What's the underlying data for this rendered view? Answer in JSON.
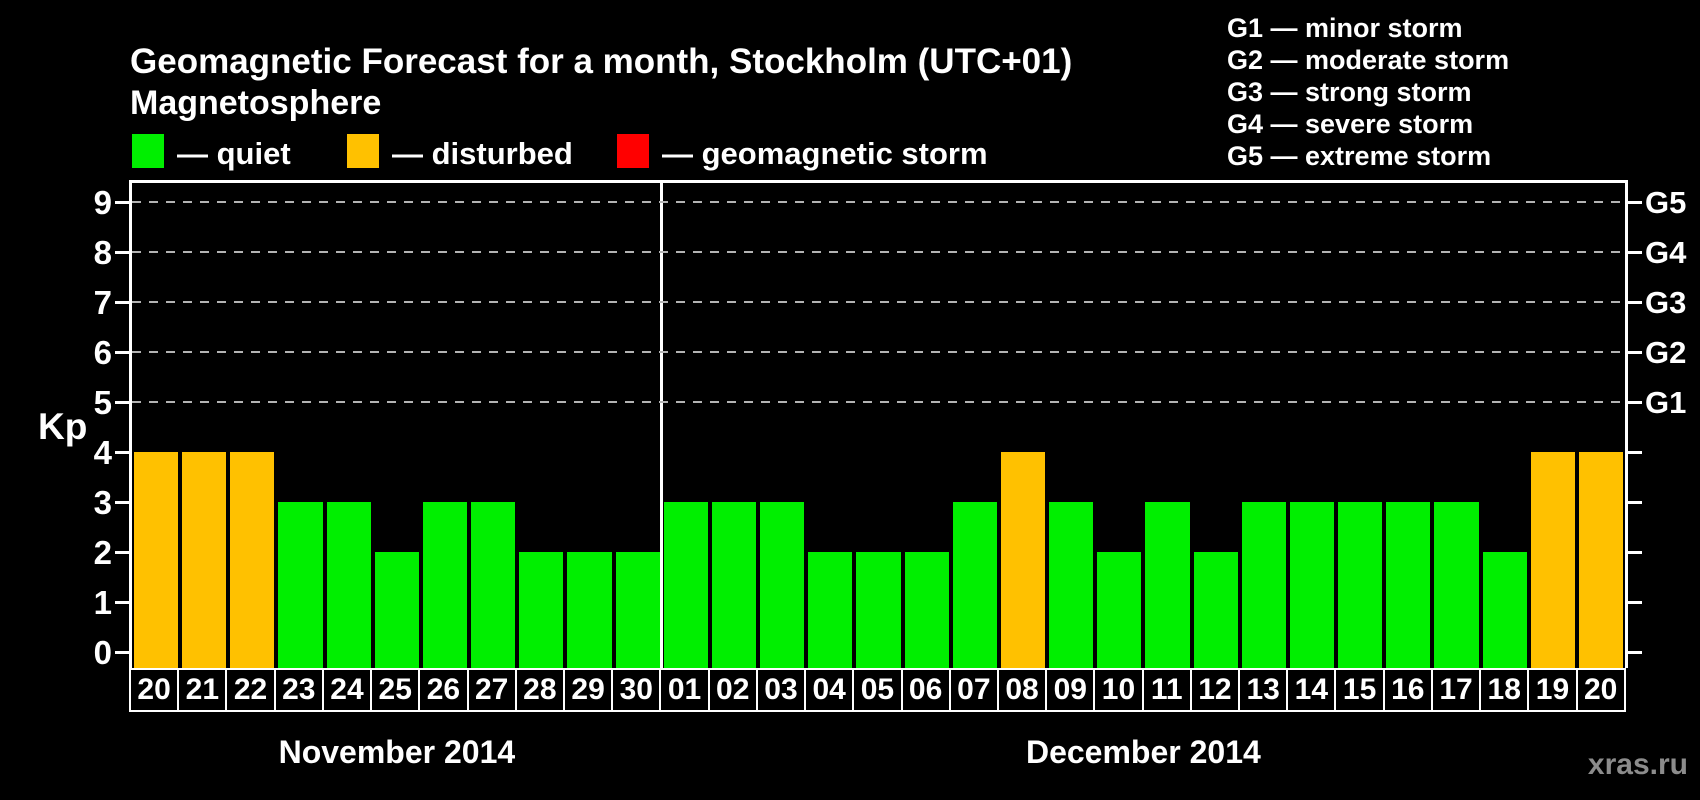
{
  "title": "Geomagnetic Forecast for a month, Stockholm (UTC+01)",
  "legend": {
    "heading": "Magnetosphere",
    "items": [
      {
        "status": "quiet",
        "label": "— quiet",
        "color": "#00EF00"
      },
      {
        "status": "disturbed",
        "label": "— disturbed",
        "color": "#FFC100"
      },
      {
        "status": "storm",
        "label": "— geomagnetic storm",
        "color": "#FF0000"
      }
    ]
  },
  "storm_scale_legend": [
    "G1 — minor storm",
    "G2 — moderate storm",
    "G3 — strong storm",
    "G4 — severe storm",
    "G5 — extreme storm"
  ],
  "y_axis": {
    "title": "Kp",
    "ticks": [
      0,
      1,
      2,
      3,
      4,
      5,
      6,
      7,
      8,
      9
    ],
    "gridline_levels": [
      5,
      6,
      7,
      8,
      9
    ],
    "right_labels": [
      {
        "level": 5,
        "label": "G1"
      },
      {
        "level": 6,
        "label": "G2"
      },
      {
        "level": 7,
        "label": "G3"
      },
      {
        "level": 8,
        "label": "G4"
      },
      {
        "level": 9,
        "label": "G5"
      }
    ]
  },
  "months": [
    {
      "label": "November 2014",
      "day_count": 11
    },
    {
      "label": "December 2014",
      "day_count": 20
    }
  ],
  "watermark": "xras.ru",
  "colors": {
    "background": "#000000",
    "axis": "#FFFFFF",
    "gridline": "#B3B3B3",
    "text": "#FFFFFF",
    "watermark": "#8C8C8C"
  },
  "chart_data": {
    "type": "bar",
    "title": "Geomagnetic Forecast for a month, Stockholm (UTC+01)",
    "xlabel": "",
    "ylabel": "Kp",
    "ylim": [
      0,
      9.4
    ],
    "grid": "dashed horizontal at Kp 5-9 (G1-G5)",
    "legend_position": "top",
    "categories": [
      "Nov 20",
      "Nov 21",
      "Nov 22",
      "Nov 23",
      "Nov 24",
      "Nov 25",
      "Nov 26",
      "Nov 27",
      "Nov 28",
      "Nov 29",
      "Nov 30",
      "Dec 01",
      "Dec 02",
      "Dec 03",
      "Dec 04",
      "Dec 05",
      "Dec 06",
      "Dec 07",
      "Dec 08",
      "Dec 09",
      "Dec 10",
      "Dec 11",
      "Dec 12",
      "Dec 13",
      "Dec 14",
      "Dec 15",
      "Dec 16",
      "Dec 17",
      "Dec 18",
      "Dec 19",
      "Dec 20"
    ],
    "series": [
      {
        "name": "Kp forecast",
        "values": [
          4,
          4,
          4,
          3,
          3,
          2,
          3,
          3,
          2,
          2,
          2,
          3,
          3,
          3,
          2,
          2,
          2,
          3,
          4,
          3,
          2,
          3,
          2,
          3,
          3,
          3,
          3,
          3,
          2,
          4,
          4
        ]
      }
    ],
    "days": [
      {
        "month": "November 2014",
        "label": "20",
        "kp": 4,
        "status": "disturbed"
      },
      {
        "month": "November 2014",
        "label": "21",
        "kp": 4,
        "status": "disturbed"
      },
      {
        "month": "November 2014",
        "label": "22",
        "kp": 4,
        "status": "disturbed"
      },
      {
        "month": "November 2014",
        "label": "23",
        "kp": 3,
        "status": "quiet"
      },
      {
        "month": "November 2014",
        "label": "24",
        "kp": 3,
        "status": "quiet"
      },
      {
        "month": "November 2014",
        "label": "25",
        "kp": 2,
        "status": "quiet"
      },
      {
        "month": "November 2014",
        "label": "26",
        "kp": 3,
        "status": "quiet"
      },
      {
        "month": "November 2014",
        "label": "27",
        "kp": 3,
        "status": "quiet"
      },
      {
        "month": "November 2014",
        "label": "28",
        "kp": 2,
        "status": "quiet"
      },
      {
        "month": "November 2014",
        "label": "29",
        "kp": 2,
        "status": "quiet"
      },
      {
        "month": "November 2014",
        "label": "30",
        "kp": 2,
        "status": "quiet"
      },
      {
        "month": "December 2014",
        "label": "01",
        "kp": 3,
        "status": "quiet"
      },
      {
        "month": "December 2014",
        "label": "02",
        "kp": 3,
        "status": "quiet"
      },
      {
        "month": "December 2014",
        "label": "03",
        "kp": 3,
        "status": "quiet"
      },
      {
        "month": "December 2014",
        "label": "04",
        "kp": 2,
        "status": "quiet"
      },
      {
        "month": "December 2014",
        "label": "05",
        "kp": 2,
        "status": "quiet"
      },
      {
        "month": "December 2014",
        "label": "06",
        "kp": 2,
        "status": "quiet"
      },
      {
        "month": "December 2014",
        "label": "07",
        "kp": 3,
        "status": "quiet"
      },
      {
        "month": "December 2014",
        "label": "08",
        "kp": 4,
        "status": "disturbed"
      },
      {
        "month": "December 2014",
        "label": "09",
        "kp": 3,
        "status": "quiet"
      },
      {
        "month": "December 2014",
        "label": "10",
        "kp": 2,
        "status": "quiet"
      },
      {
        "month": "December 2014",
        "label": "11",
        "kp": 3,
        "status": "quiet"
      },
      {
        "month": "December 2014",
        "label": "12",
        "kp": 2,
        "status": "quiet"
      },
      {
        "month": "December 2014",
        "label": "13",
        "kp": 3,
        "status": "quiet"
      },
      {
        "month": "December 2014",
        "label": "14",
        "kp": 3,
        "status": "quiet"
      },
      {
        "month": "December 2014",
        "label": "15",
        "kp": 3,
        "status": "quiet"
      },
      {
        "month": "December 2014",
        "label": "16",
        "kp": 3,
        "status": "quiet"
      },
      {
        "month": "December 2014",
        "label": "17",
        "kp": 3,
        "status": "quiet"
      },
      {
        "month": "December 2014",
        "label": "18",
        "kp": 2,
        "status": "quiet"
      },
      {
        "month": "December 2014",
        "label": "19",
        "kp": 4,
        "status": "disturbed"
      },
      {
        "month": "December 2014",
        "label": "20",
        "kp": 4,
        "status": "disturbed"
      }
    ]
  }
}
